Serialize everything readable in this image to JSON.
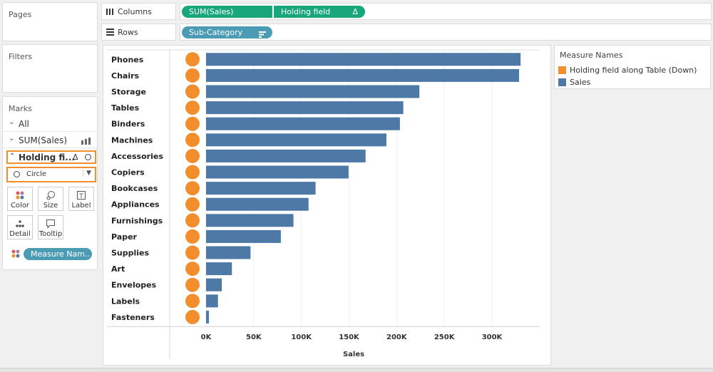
{
  "left_panels": {
    "pages": "Pages",
    "filters": "Filters",
    "marks": "Marks"
  },
  "marks_card": {
    "all": "All",
    "sum_sales": "SUM(Sales)",
    "holding": "Holding fi...",
    "mark_type": "Circle",
    "buttons": {
      "color": "Color",
      "size": "Size",
      "label": "Label",
      "detail": "Detail",
      "tooltip": "Tooltip"
    },
    "measure_pill": "Measure Nam.."
  },
  "shelves": {
    "columns_label": "Columns",
    "rows_label": "Rows",
    "columns_pills": [
      "SUM(Sales)",
      "Holding field"
    ],
    "rows_pill": "Sub-Category"
  },
  "legend": {
    "title": "Measure Names",
    "items": [
      {
        "label": "Holding field along Table (Down)",
        "color": "#f28e2b"
      },
      {
        "label": "Sales",
        "color": "#4e79a7"
      }
    ]
  },
  "chart_data": {
    "type": "bar",
    "categories": [
      "Phones",
      "Chairs",
      "Storage",
      "Tables",
      "Binders",
      "Machines",
      "Accessories",
      "Copiers",
      "Bookcases",
      "Appliances",
      "Furnishings",
      "Paper",
      "Supplies",
      "Art",
      "Envelopes",
      "Labels",
      "Fasteners"
    ],
    "series": [
      {
        "name": "Sales",
        "values": [
          330007,
          328449,
          223844,
          206966,
          203413,
          189239,
          167380,
          149528,
          114880,
          107532,
          91705,
          78479,
          46674,
          27119,
          16476,
          12486,
          3024
        ],
        "color": "#4e79a7"
      },
      {
        "name": "Holding field along Table (Down)",
        "values": [
          0,
          0,
          0,
          0,
          0,
          0,
          0,
          0,
          0,
          0,
          0,
          0,
          0,
          0,
          0,
          0,
          0
        ],
        "color": "#f28e2b"
      }
    ],
    "xlabel": "Sales",
    "xlim": [
      0,
      340000
    ],
    "ticks": [
      0,
      50000,
      100000,
      150000,
      200000,
      250000,
      300000
    ],
    "tick_labels": [
      "0K",
      "50K",
      "100K",
      "150K",
      "200K",
      "250K",
      "300K"
    ],
    "grid": true
  }
}
